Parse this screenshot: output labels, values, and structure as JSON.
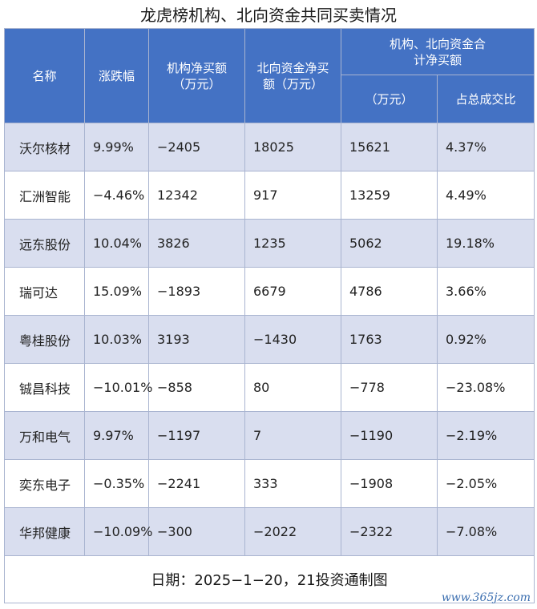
{
  "title": "龙虎榜机构、北向资金共同买卖情况",
  "chart_data": {
    "type": "table",
    "title": "龙虎榜机构、北向资金共同买卖情况",
    "headers": {
      "name": "名称",
      "change": "涨跌幅",
      "inst_net": "机构净买额（万元）",
      "north_net": "北向资金净买额（万元）",
      "combined_group": "机构、北向资金合计净买额",
      "combined_amount": "（万元）",
      "turnover_ratio": "占总成交比"
    },
    "rows": [
      {
        "name": "沃尔核材",
        "change": "9.99%",
        "inst_net": "−2405",
        "north_net": "18025",
        "combined": "15621",
        "ratio": "4.37%"
      },
      {
        "name": "汇洲智能",
        "change": "−4.46%",
        "inst_net": "12342",
        "north_net": "917",
        "combined": "13259",
        "ratio": "4.49%"
      },
      {
        "name": "远东股份",
        "change": "10.04%",
        "inst_net": "3826",
        "north_net": "1235",
        "combined": "5062",
        "ratio": "19.18%"
      },
      {
        "name": "瑞可达",
        "change": "15.09%",
        "inst_net": "−1893",
        "north_net": "6679",
        "combined": "4786",
        "ratio": "3.66%"
      },
      {
        "name": "粤桂股份",
        "change": "10.03%",
        "inst_net": "3193",
        "north_net": "−1430",
        "combined": "1763",
        "ratio": "0.92%"
      },
      {
        "name": "铖昌科技",
        "change": "−10.01%",
        "inst_net": "−858",
        "north_net": "80",
        "combined": "−778",
        "ratio": "−23.08%"
      },
      {
        "name": "万和电气",
        "change": "9.97%",
        "inst_net": "−1197",
        "north_net": "7",
        "combined": "−1190",
        "ratio": "−2.19%"
      },
      {
        "name": "奕东电子",
        "change": "−0.35%",
        "inst_net": "−2241",
        "north_net": "333",
        "combined": "−1908",
        "ratio": "−2.05%"
      },
      {
        "name": "华邦健康",
        "change": "−10.09%",
        "inst_net": "−300",
        "north_net": "−2022",
        "combined": "−2322",
        "ratio": "−7.08%"
      }
    ],
    "footer": "日期：2025−1−20，21投资通制图"
  },
  "watermark": "www.365jz.com",
  "colors": {
    "header_bg": "#4472c4",
    "stripe_bg": "#d9deef",
    "border": "#a9b4d0"
  }
}
